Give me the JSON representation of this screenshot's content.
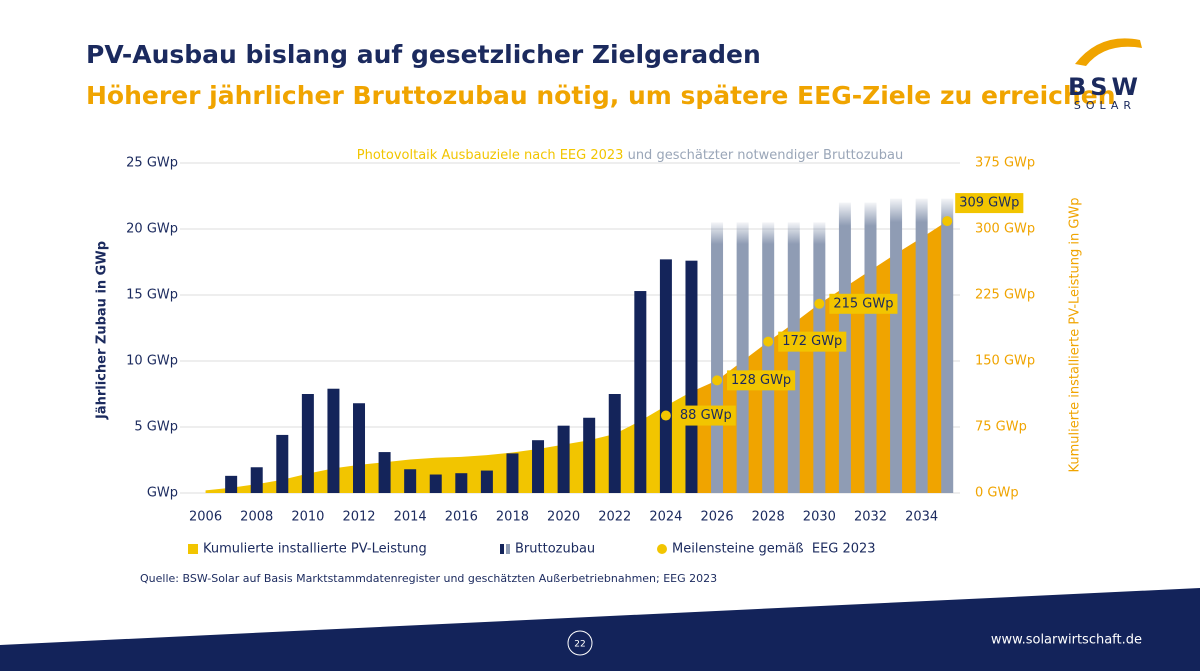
{
  "header": {
    "title": "PV-Ausbau bislang auf gesetzlicher Zielgeraden",
    "subtitle": "Höherer jährlicher Bruttozubau nötig, um spätere EEG-Ziele zu erreichen"
  },
  "logo": {
    "line1": "BSW",
    "line2": "SOLAR"
  },
  "chart_data": {
    "type": "bar",
    "title": [
      "Photovoltaik Ausbauziele nach EEG 2023",
      "und geschätzter notwendiger Bruttozubau"
    ],
    "title_colors": [
      "#f2c500",
      "#9aa6b8"
    ],
    "y_label": "Jährlicher Zubau in GWp",
    "y2_label": "Kumulierte installierte PV-Leistung in GWp",
    "x": [
      2006,
      2007,
      2008,
      2009,
      2010,
      2011,
      2012,
      2013,
      2014,
      2015,
      2016,
      2017,
      2018,
      2019,
      2020,
      2021,
      2022,
      2023,
      2024,
      2025,
      2026,
      2027,
      2028,
      2029,
      2030,
      2031,
      2032,
      2033,
      2034,
      2035
    ],
    "xlim": [
      2005,
      2035.5
    ],
    "xticks": [
      2006,
      2008,
      2010,
      2012,
      2014,
      2016,
      2018,
      2020,
      2022,
      2024,
      2026,
      2028,
      2030,
      2032,
      2034
    ],
    "ylim": [
      0,
      25
    ],
    "yticks": [
      {
        "value": 0,
        "label": "GWp"
      },
      {
        "value": 5,
        "label": "5 GWp"
      },
      {
        "value": 10,
        "label": "10 GWp"
      },
      {
        "value": 15,
        "label": "15 GWp"
      },
      {
        "value": 20,
        "label": "20 GWp"
      },
      {
        "value": 25,
        "label": "25 GWp"
      }
    ],
    "y2lim": [
      0,
      375
    ],
    "y2ticks": [
      {
        "value": 0,
        "label": "0 GWp"
      },
      {
        "value": 75,
        "label": "75 GWp"
      },
      {
        "value": 150,
        "label": "150 GWp"
      },
      {
        "value": 225,
        "label": "225 GWp"
      },
      {
        "value": 300,
        "label": "300 GWp"
      },
      {
        "value": 375,
        "label": "375 GWp"
      }
    ],
    "grid": true,
    "forecast_from": 2025,
    "series": [
      {
        "name": "Kumulierte installierte PV-Leistung",
        "type": "area",
        "axis": "y2",
        "color": "#f2c500",
        "forecast_color": "#f0a400",
        "values": [
          3,
          6,
          10,
          15,
          22,
          28,
          32,
          35,
          38,
          40,
          41,
          43,
          46,
          50,
          55,
          60,
          67,
          82,
          99,
          115,
          128,
          150,
          172,
          193,
          215,
          234,
          253,
          272,
          290,
          309
        ]
      },
      {
        "name": "Bruttozubau",
        "type": "bar",
        "color": "#14245a",
        "forecast_color": "#8f9cb4",
        "values": [
          null,
          1.3,
          1.95,
          4.4,
          7.5,
          7.9,
          6.8,
          3.1,
          1.8,
          1.4,
          1.5,
          1.7,
          3.0,
          4.0,
          5.1,
          5.7,
          7.5,
          15.3,
          17.7,
          17.6,
          20.5,
          20.5,
          20.5,
          20.5,
          20.5,
          22,
          22,
          22.3,
          22.3,
          22.3
        ]
      },
      {
        "name": "Meilensteine gemäß  EEG 2023",
        "type": "scatter",
        "axis": "y2",
        "color": "#f2c500",
        "x": [
          2024,
          2026,
          2028,
          2030,
          2035
        ],
        "values": [
          88,
          128,
          172,
          215,
          309
        ],
        "value_labels": [
          "88 GWp",
          "128 GWp",
          "172 GWp",
          "215 GWp",
          "309 GWp"
        ]
      }
    ]
  },
  "footer": {
    "source": "Quelle: BSW-Solar auf Basis Marktstammdatenregister und geschätzten Außerbetriebnahmen; EEG 2023",
    "page": "22",
    "url": "www.solarwirtschaft.de"
  }
}
